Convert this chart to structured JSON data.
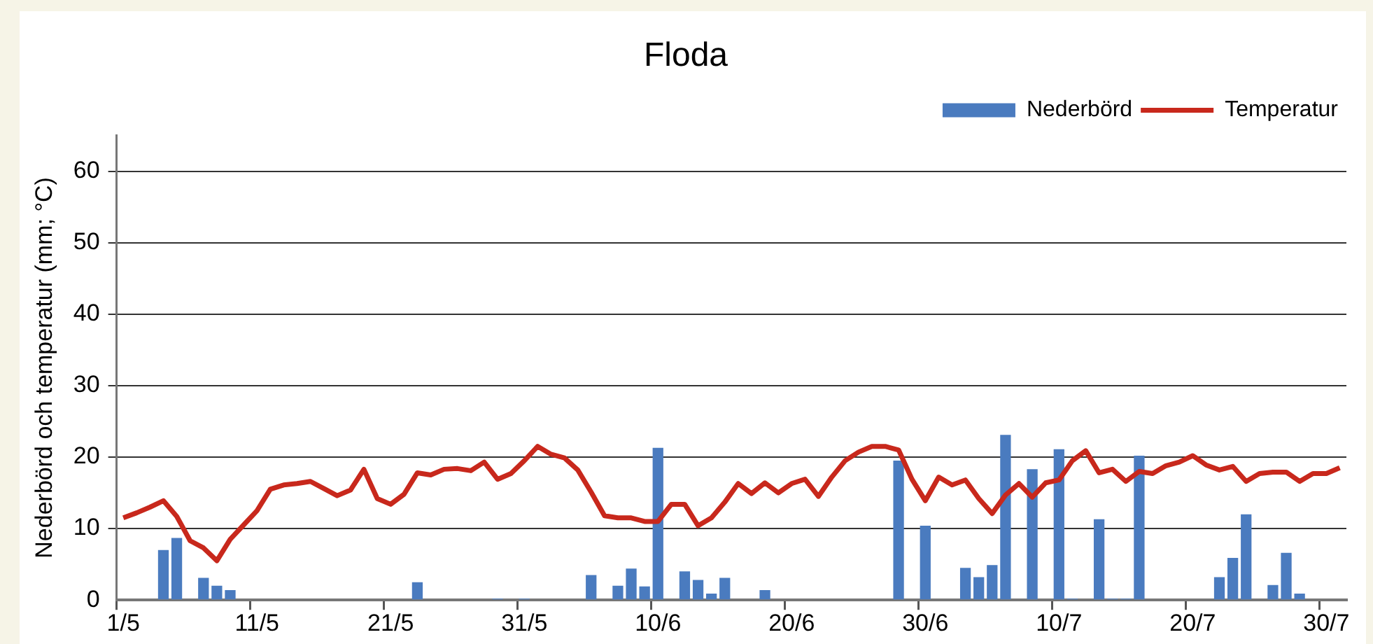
{
  "chart_data": {
    "type": "bar",
    "title": "Floda",
    "ylabel": "Nederbörd och temperatur (mm; °C)",
    "categories": [
      "1/5",
      null,
      null,
      null,
      null,
      null,
      null,
      null,
      null,
      null,
      "11/5",
      null,
      null,
      null,
      null,
      null,
      null,
      null,
      null,
      null,
      "21/5",
      null,
      null,
      null,
      null,
      null,
      null,
      null,
      null,
      null,
      "31/5",
      null,
      null,
      null,
      null,
      null,
      null,
      null,
      null,
      null,
      "10/6",
      null,
      null,
      null,
      null,
      null,
      null,
      null,
      null,
      null,
      "20/6",
      null,
      null,
      null,
      null,
      null,
      null,
      null,
      null,
      null,
      "30/6",
      null,
      null,
      null,
      null,
      null,
      null,
      null,
      null,
      null,
      "10/7",
      null,
      null,
      null,
      null,
      null,
      null,
      null,
      null,
      null,
      "20/7",
      null,
      null,
      null,
      null,
      null,
      null,
      null,
      null,
      null,
      "30/7",
      null
    ],
    "series": [
      {
        "name": "Nederbörd",
        "color": "#4a7bbf",
        "values": [
          0,
          0,
          0,
          7.0,
          8.7,
          0,
          3.1,
          2.0,
          1.4,
          0,
          0,
          0,
          0,
          0,
          0,
          0,
          0,
          0,
          0,
          0,
          0,
          0,
          2.5,
          0,
          0,
          0,
          0.1,
          0,
          0.2,
          0,
          0.2,
          0,
          0,
          0,
          0,
          3.5,
          0.1,
          2.0,
          4.4,
          1.9,
          21.3,
          0,
          4.0,
          2.8,
          0.9,
          3.1,
          0,
          0,
          1.4,
          0,
          0,
          0,
          0.1,
          0,
          0,
          0,
          0,
          0,
          19.5,
          0,
          10.4,
          0,
          0,
          4.5,
          3.2,
          4.9,
          23.1,
          0,
          18.3,
          0,
          21.1,
          0.2,
          0,
          11.3,
          0.2,
          0.2,
          20.2,
          0.1,
          0,
          0,
          0,
          0,
          3.2,
          5.9,
          12.0,
          0,
          2.1,
          6.6,
          0.9,
          0,
          0,
          0
        ]
      },
      {
        "name": "Temperatur",
        "type": "line",
        "color": "#c8281c",
        "values": [
          11.5,
          12.2,
          13.0,
          13.9,
          11.7,
          8.3,
          7.3,
          5.5,
          8.5,
          10.5,
          12.5,
          15.5,
          16.1,
          16.3,
          16.6,
          15.6,
          14.6,
          15.4,
          18.3,
          14.2,
          13.4,
          14.8,
          17.8,
          17.5,
          18.3,
          18.4,
          18.1,
          19.3,
          16.9,
          17.7,
          19.5,
          21.5,
          20.4,
          19.9,
          18.2,
          15.1,
          11.8,
          11.5,
          11.5,
          11.0,
          11.0,
          13.4,
          13.4,
          10.4,
          11.5,
          13.7,
          16.3,
          14.9,
          16.4,
          15.0,
          16.3,
          16.9,
          14.5,
          17.2,
          19.5,
          20.7,
          21.5,
          21.5,
          21.0,
          16.9,
          13.9,
          17.2,
          16.1,
          16.8,
          14.2,
          12.1,
          14.7,
          16.3,
          14.4,
          16.4,
          16.8,
          19.5,
          20.9,
          17.8,
          18.3,
          16.6,
          18.0,
          17.7,
          18.8,
          19.3,
          20.2,
          18.9,
          18.2,
          18.7,
          16.6,
          17.7,
          17.9,
          17.9,
          16.6,
          17.7,
          17.7,
          18.5
        ]
      }
    ],
    "ylim": [
      0,
      65
    ],
    "yticks": [
      0,
      10,
      20,
      30,
      40,
      50,
      60
    ],
    "grid": "y",
    "legend": "top right"
  }
}
